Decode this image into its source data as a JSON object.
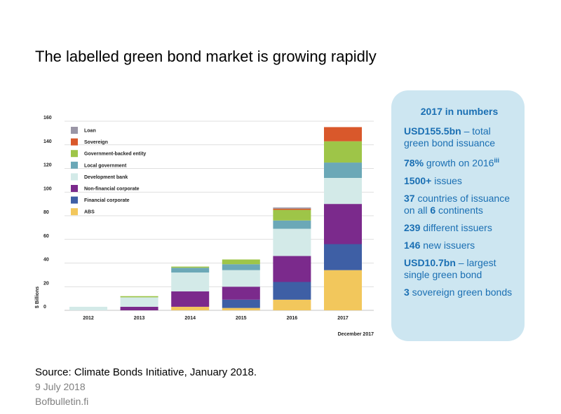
{
  "slide": {
    "title": "The labelled green bond market is growing rapidly",
    "source": "Source: Climate Bonds Initiative, January 2018.",
    "date": "9 July 2018",
    "site": "Bofbulletin.fi"
  },
  "chart_data": {
    "type": "bar",
    "stacked": true,
    "ylabel": "$ Billions",
    "note": "December 2017",
    "ylim": [
      0,
      160
    ],
    "yticks": [
      0,
      20,
      40,
      60,
      80,
      100,
      120,
      140,
      160
    ],
    "grid": true,
    "legend_position": "top-left",
    "categories": [
      "2012",
      "2013",
      "2014",
      "2015",
      "2016",
      "2017"
    ],
    "series": [
      {
        "name": "ABS",
        "color": "#f2c75c",
        "values": [
          0,
          0,
          3,
          2,
          9,
          34
        ]
      },
      {
        "name": "Financial corporate",
        "color": "#3e5fa5",
        "values": [
          0,
          0,
          0,
          7,
          15,
          22
        ]
      },
      {
        "name": "Non-financial corporate",
        "color": "#7b2a8c",
        "values": [
          0,
          3,
          13,
          11,
          22,
          34
        ]
      },
      {
        "name": "Development bank",
        "color": "#d3eae8",
        "values": [
          3,
          8,
          16,
          14,
          23,
          22
        ]
      },
      {
        "name": "Local government",
        "color": "#6ba8b7",
        "values": [
          0,
          0,
          4,
          5,
          7,
          13
        ]
      },
      {
        "name": "Government-backed entity",
        "color": "#9ec548",
        "values": [
          0,
          1,
          1,
          4,
          9,
          18
        ]
      },
      {
        "name": "Sovereign",
        "color": "#d9582b",
        "values": [
          0,
          0,
          0,
          0,
          1,
          12
        ]
      },
      {
        "name": "Loan",
        "color": "#9a96a6",
        "values": [
          0,
          0,
          0,
          0,
          1,
          0
        ]
      }
    ],
    "legend_order": [
      "Loan",
      "Sovereign",
      "Government-backed entity",
      "Local government",
      "Development bank",
      "Non-financial corporate",
      "Financial corporate",
      "ABS"
    ]
  },
  "panel": {
    "title": "2017 in numbers",
    "stats": [
      {
        "bold": "USD155.5bn",
        "text": " – total green bond issuance"
      },
      {
        "bold": "78%",
        "text": " growth on 2016",
        "sup": "iii"
      },
      {
        "bold": "1500+",
        "text": " issues"
      },
      {
        "bold": "37",
        "text": " countries of issuance on all ",
        "bold2": "6",
        "text2": " continents"
      },
      {
        "bold": "239",
        "text": " different issuers"
      },
      {
        "bold": "146",
        "text": " new issuers"
      },
      {
        "bold": "USD10.7bn",
        "text": " – largest single green bond"
      },
      {
        "bold": "3",
        "text": " sovereign green bonds"
      }
    ]
  }
}
